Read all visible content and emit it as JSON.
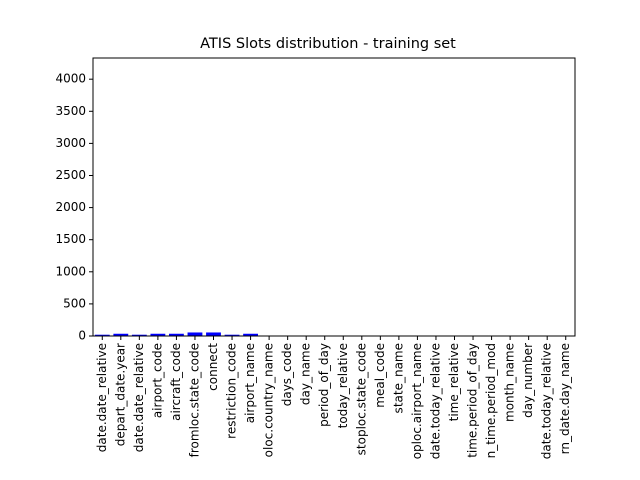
{
  "chart_data": {
    "type": "bar",
    "title": "ATIS Slots distribution - training set",
    "categories": [
      "date.date_relative",
      "depart_date.year",
      "date.date_relative",
      "airport_code",
      "aircraft_code",
      "fromloc.state_code",
      "connect",
      "restriction_code",
      "airport_name",
      "oloc.country_name",
      "days_code",
      "day_name",
      "period_of_day",
      "today_relative",
      "stoploc.state_code",
      "meal_code",
      "state_name",
      "oploc.airport_name",
      "date.today_relative",
      "time_relative",
      "time.period_of_day",
      "n_time.period_mod",
      "month_name",
      "day_number",
      "date.today_relative",
      "rn_date.day_name"
    ],
    "values": [
      20,
      35,
      20,
      35,
      35,
      55,
      55,
      20,
      35,
      0,
      0,
      0,
      0,
      0,
      0,
      0,
      0,
      0,
      0,
      0,
      0,
      0,
      0,
      0,
      0,
      0
    ],
    "color": "#0000ff",
    "ylim": [
      0,
      4330
    ],
    "yticks": [
      0,
      500,
      1000,
      1500,
      2000,
      2500,
      3000,
      3500,
      4000
    ],
    "grid": false
  }
}
